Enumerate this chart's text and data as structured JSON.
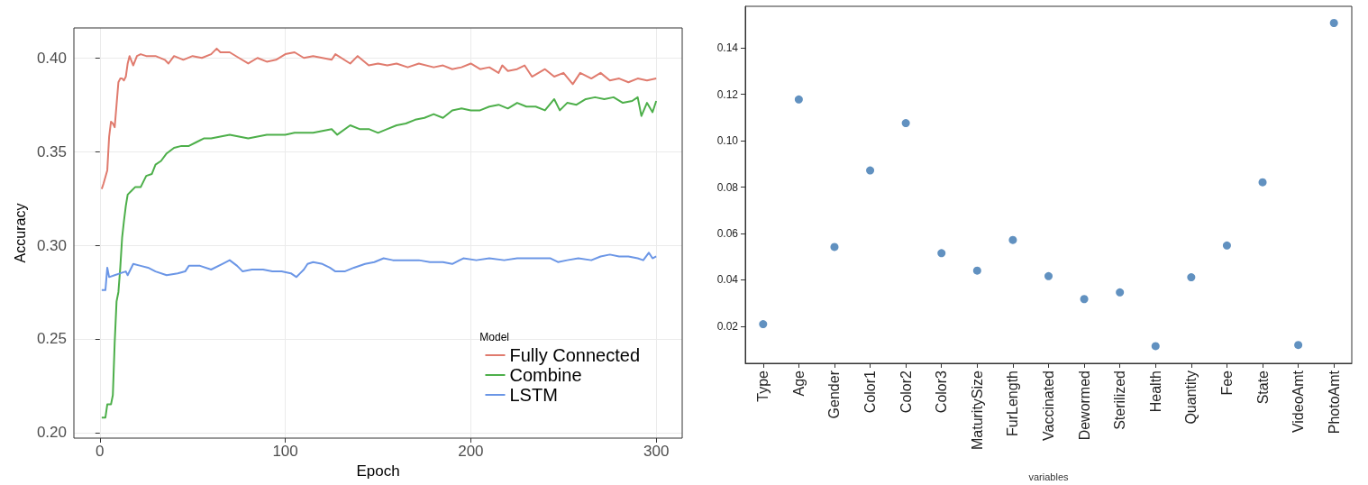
{
  "chart_data": [
    {
      "type": "line",
      "xlabel": "Epoch",
      "ylabel": "Accuracy",
      "legend_title": "Model",
      "legend": "bottom right",
      "grid": true,
      "marker": "none",
      "line_style": "solid",
      "xlim": [
        -14,
        314
      ],
      "xticks": [
        0,
        100,
        200,
        300
      ],
      "ylim": [
        0.197,
        0.416
      ],
      "yticks": [
        {
          "value": 0.2,
          "label": "0.20"
        },
        {
          "value": 0.25,
          "label": "0.25"
        },
        {
          "value": 0.3,
          "label": "0.30"
        },
        {
          "value": 0.35,
          "label": "0.35"
        },
        {
          "value": 0.4,
          "label": "0.40"
        }
      ],
      "series": [
        {
          "name": "Fully Connected",
          "color": "#e07b6e",
          "x": [
            1,
            2,
            4,
            5,
            6,
            7,
            8,
            9,
            10,
            11,
            12,
            13,
            14,
            15,
            16,
            18,
            20,
            22,
            25,
            30,
            35,
            37,
            40,
            45,
            50,
            55,
            60,
            63,
            65,
            70,
            75,
            80,
            85,
            90,
            95,
            100,
            105,
            110,
            115,
            120,
            125,
            127,
            135,
            139,
            145,
            150,
            155,
            160,
            166,
            172,
            180,
            185,
            190,
            195,
            200,
            205,
            210,
            215,
            217,
            220,
            225,
            229,
            233,
            240,
            245,
            250,
            255,
            259,
            265,
            270,
            275,
            280,
            285,
            290,
            295,
            300
          ],
          "values": [
            0.33,
            0.333,
            0.34,
            0.358,
            0.366,
            0.365,
            0.363,
            0.375,
            0.387,
            0.389,
            0.389,
            0.388,
            0.39,
            0.397,
            0.401,
            0.396,
            0.401,
            0.402,
            0.401,
            0.401,
            0.399,
            0.397,
            0.401,
            0.399,
            0.401,
            0.4,
            0.402,
            0.405,
            0.403,
            0.403,
            0.4,
            0.397,
            0.4,
            0.398,
            0.399,
            0.402,
            0.403,
            0.4,
            0.401,
            0.4,
            0.399,
            0.402,
            0.397,
            0.401,
            0.396,
            0.397,
            0.396,
            0.397,
            0.395,
            0.397,
            0.395,
            0.396,
            0.394,
            0.395,
            0.397,
            0.394,
            0.395,
            0.392,
            0.396,
            0.393,
            0.394,
            0.396,
            0.39,
            0.394,
            0.39,
            0.392,
            0.386,
            0.392,
            0.389,
            0.392,
            0.388,
            0.389,
            0.387,
            0.389,
            0.388,
            0.389
          ]
        },
        {
          "name": "Combine",
          "color": "#4daf4a",
          "x": [
            1,
            3,
            4,
            6,
            7,
            8,
            9,
            10,
            11,
            12,
            13,
            14,
            15,
            17,
            19,
            22,
            25,
            28,
            30,
            33,
            36,
            40,
            44,
            48,
            52,
            56,
            60,
            65,
            70,
            75,
            80,
            85,
            90,
            95,
            100,
            105,
            110,
            115,
            120,
            125,
            128,
            135,
            140,
            145,
            150,
            155,
            160,
            165,
            170,
            175,
            180,
            185,
            190,
            195,
            200,
            205,
            210,
            215,
            220,
            225,
            230,
            235,
            240,
            245,
            248,
            252,
            257,
            262,
            267,
            272,
            277,
            282,
            287,
            290,
            292,
            295,
            298,
            300
          ],
          "values": [
            0.208,
            0.208,
            0.215,
            0.215,
            0.22,
            0.248,
            0.27,
            0.275,
            0.288,
            0.304,
            0.313,
            0.321,
            0.327,
            0.329,
            0.331,
            0.331,
            0.337,
            0.338,
            0.343,
            0.345,
            0.349,
            0.352,
            0.353,
            0.353,
            0.355,
            0.357,
            0.357,
            0.358,
            0.359,
            0.358,
            0.357,
            0.358,
            0.359,
            0.359,
            0.359,
            0.36,
            0.36,
            0.36,
            0.361,
            0.362,
            0.359,
            0.364,
            0.362,
            0.362,
            0.36,
            0.362,
            0.364,
            0.365,
            0.367,
            0.368,
            0.37,
            0.368,
            0.372,
            0.373,
            0.372,
            0.372,
            0.374,
            0.375,
            0.373,
            0.376,
            0.374,
            0.374,
            0.372,
            0.378,
            0.372,
            0.376,
            0.375,
            0.378,
            0.379,
            0.378,
            0.379,
            0.376,
            0.377,
            0.379,
            0.369,
            0.376,
            0.371,
            0.377
          ]
        },
        {
          "name": "LSTM",
          "color": "#6b96e6",
          "x": [
            1,
            3,
            4,
            5,
            8,
            11,
            14,
            15,
            18,
            22,
            26,
            30,
            36,
            42,
            46,
            48,
            54,
            60,
            66,
            70,
            74,
            77,
            82,
            88,
            93,
            98,
            103,
            106,
            108,
            110,
            112,
            115,
            120,
            124,
            127,
            132,
            137,
            143,
            148,
            153,
            158,
            165,
            172,
            178,
            185,
            190,
            196,
            203,
            210,
            218,
            225,
            230,
            237,
            243,
            247,
            252,
            258,
            265,
            270,
            275,
            280,
            285,
            290,
            293,
            296,
            298,
            300
          ],
          "values": [
            0.276,
            0.276,
            0.288,
            0.283,
            0.284,
            0.285,
            0.286,
            0.284,
            0.29,
            0.289,
            0.288,
            0.286,
            0.284,
            0.285,
            0.286,
            0.289,
            0.289,
            0.287,
            0.29,
            0.292,
            0.289,
            0.286,
            0.287,
            0.287,
            0.286,
            0.286,
            0.285,
            0.283,
            0.285,
            0.287,
            0.29,
            0.291,
            0.29,
            0.288,
            0.286,
            0.286,
            0.288,
            0.29,
            0.291,
            0.293,
            0.292,
            0.292,
            0.292,
            0.291,
            0.291,
            0.29,
            0.293,
            0.292,
            0.293,
            0.292,
            0.293,
            0.293,
            0.293,
            0.293,
            0.291,
            0.292,
            0.293,
            0.292,
            0.294,
            0.295,
            0.294,
            0.294,
            0.293,
            0.292,
            0.296,
            0.293,
            0.294
          ]
        }
      ]
    },
    {
      "type": "scatter",
      "xlabel": "variables",
      "grid": false,
      "marker": "circle",
      "categories": [
        "Type",
        "Age",
        "Gender",
        "Color1",
        "Color2",
        "Color3",
        "MaturitySize",
        "FurLength",
        "Vaccinated",
        "Dewormed",
        "Sterilized",
        "Health",
        "Quantity",
        "Fee",
        "State",
        "VideoAmt",
        "PhotoAmt"
      ],
      "ylim": [
        0.004,
        0.158
      ],
      "yticks": [
        0.02,
        0.04,
        0.06,
        0.08,
        {
          "value": 0.1,
          "label": "0.10"
        },
        0.12,
        0.14
      ],
      "series": [
        {
          "color": "#3a75b0",
          "values": [
            0.0209,
            0.1178,
            0.0542,
            0.0872,
            0.1076,
            0.0515,
            0.044,
            0.0572,
            0.0416,
            0.0317,
            0.0346,
            0.0114,
            0.0411,
            0.0548,
            0.0821,
            0.0119,
            0.1508
          ]
        }
      ]
    }
  ]
}
